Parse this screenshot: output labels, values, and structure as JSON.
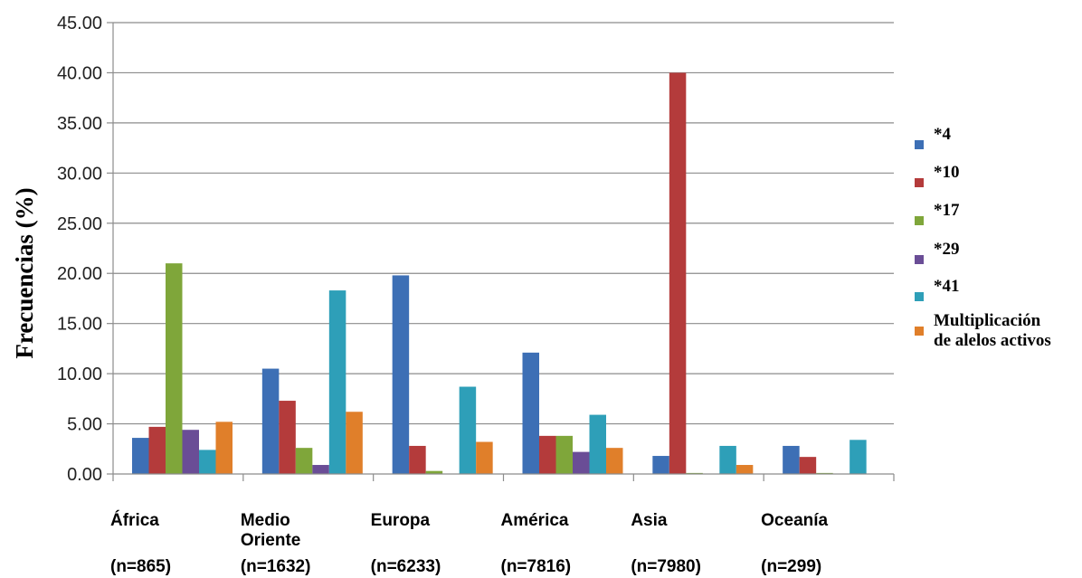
{
  "chart_data": {
    "type": "bar",
    "ylabel": "Frecuencias (%)",
    "ylim": [
      0,
      45
    ],
    "yticks": [
      "0.00",
      "5.00",
      "10.00",
      "15.00",
      "20.00",
      "25.00",
      "30.00",
      "35.00",
      "40.00",
      "45.00"
    ],
    "grid": true,
    "legend_position": "right",
    "categories": [
      {
        "name": "África",
        "n": "(n=865)"
      },
      {
        "name": "Medio Oriente",
        "name_lines": [
          "Medio",
          "Oriente"
        ],
        "n": "(n=1632)"
      },
      {
        "name": "Europa",
        "n": "(n=6233)"
      },
      {
        "name": "América",
        "n": "(n=7816)"
      },
      {
        "name": "Asia",
        "n": "(n=7980)"
      },
      {
        "name": "Oceanía",
        "n": "(n=299)"
      }
    ],
    "series": [
      {
        "name": "*4",
        "color": "#3d6fb5",
        "values": [
          3.6,
          10.5,
          19.8,
          12.1,
          1.8,
          2.8
        ]
      },
      {
        "name": "*10",
        "color": "#b43b3b",
        "values": [
          4.7,
          7.3,
          2.8,
          3.8,
          40.0,
          1.7
        ]
      },
      {
        "name": "*17",
        "color": "#7fa63a",
        "values": [
          21.0,
          2.6,
          0.3,
          3.8,
          0.1,
          0.1
        ]
      },
      {
        "name": "*29",
        "color": "#6a4d96",
        "values": [
          4.4,
          0.9,
          0.0,
          2.2,
          0.0,
          0.0
        ]
      },
      {
        "name": "*41",
        "color": "#2e9fb8",
        "values": [
          2.4,
          18.3,
          8.7,
          5.9,
          2.8,
          3.4
        ]
      },
      {
        "name": "Multiplicación de alelos activos",
        "name_lines": [
          "Multiplicación",
          "de alelos activos"
        ],
        "color": "#e07f2a",
        "values": [
          5.2,
          6.2,
          3.2,
          2.6,
          0.9,
          0.0
        ]
      }
    ]
  }
}
